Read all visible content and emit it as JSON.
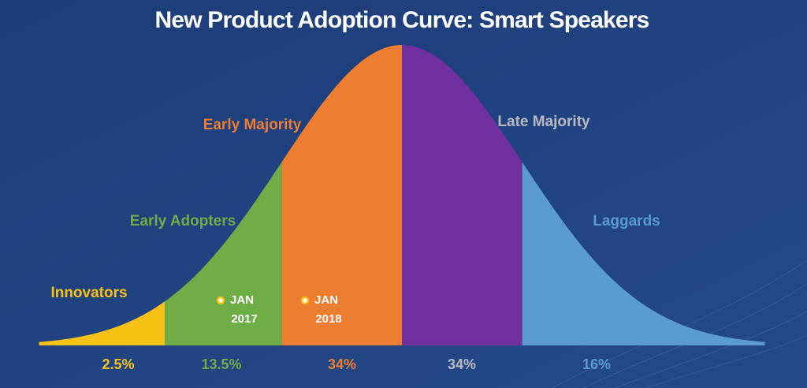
{
  "chart_data": {
    "type": "bell",
    "title": "New Product Adoption Curve: Smart Speakers",
    "categories": [
      "Innovators",
      "Early Adopters",
      "Early Majority",
      "Late Majority",
      "Laggards"
    ],
    "values": [
      2.5,
      13.5,
      34,
      34,
      16
    ],
    "value_labels": [
      "2.5%",
      "13.5%",
      "34%",
      "34%",
      "16%"
    ],
    "colors": [
      "#f9c015",
      "#6fad47",
      "#ed7d31",
      "#7030a0",
      "#5b9bd5"
    ],
    "label_colors": [
      "#f9c015",
      "#6fad47",
      "#ed7d31",
      "#b9b9bf",
      "#5b9bd5"
    ],
    "annotations": [
      [
        "JAN",
        "2017"
      ],
      [
        "JAN",
        "2018"
      ]
    ]
  }
}
